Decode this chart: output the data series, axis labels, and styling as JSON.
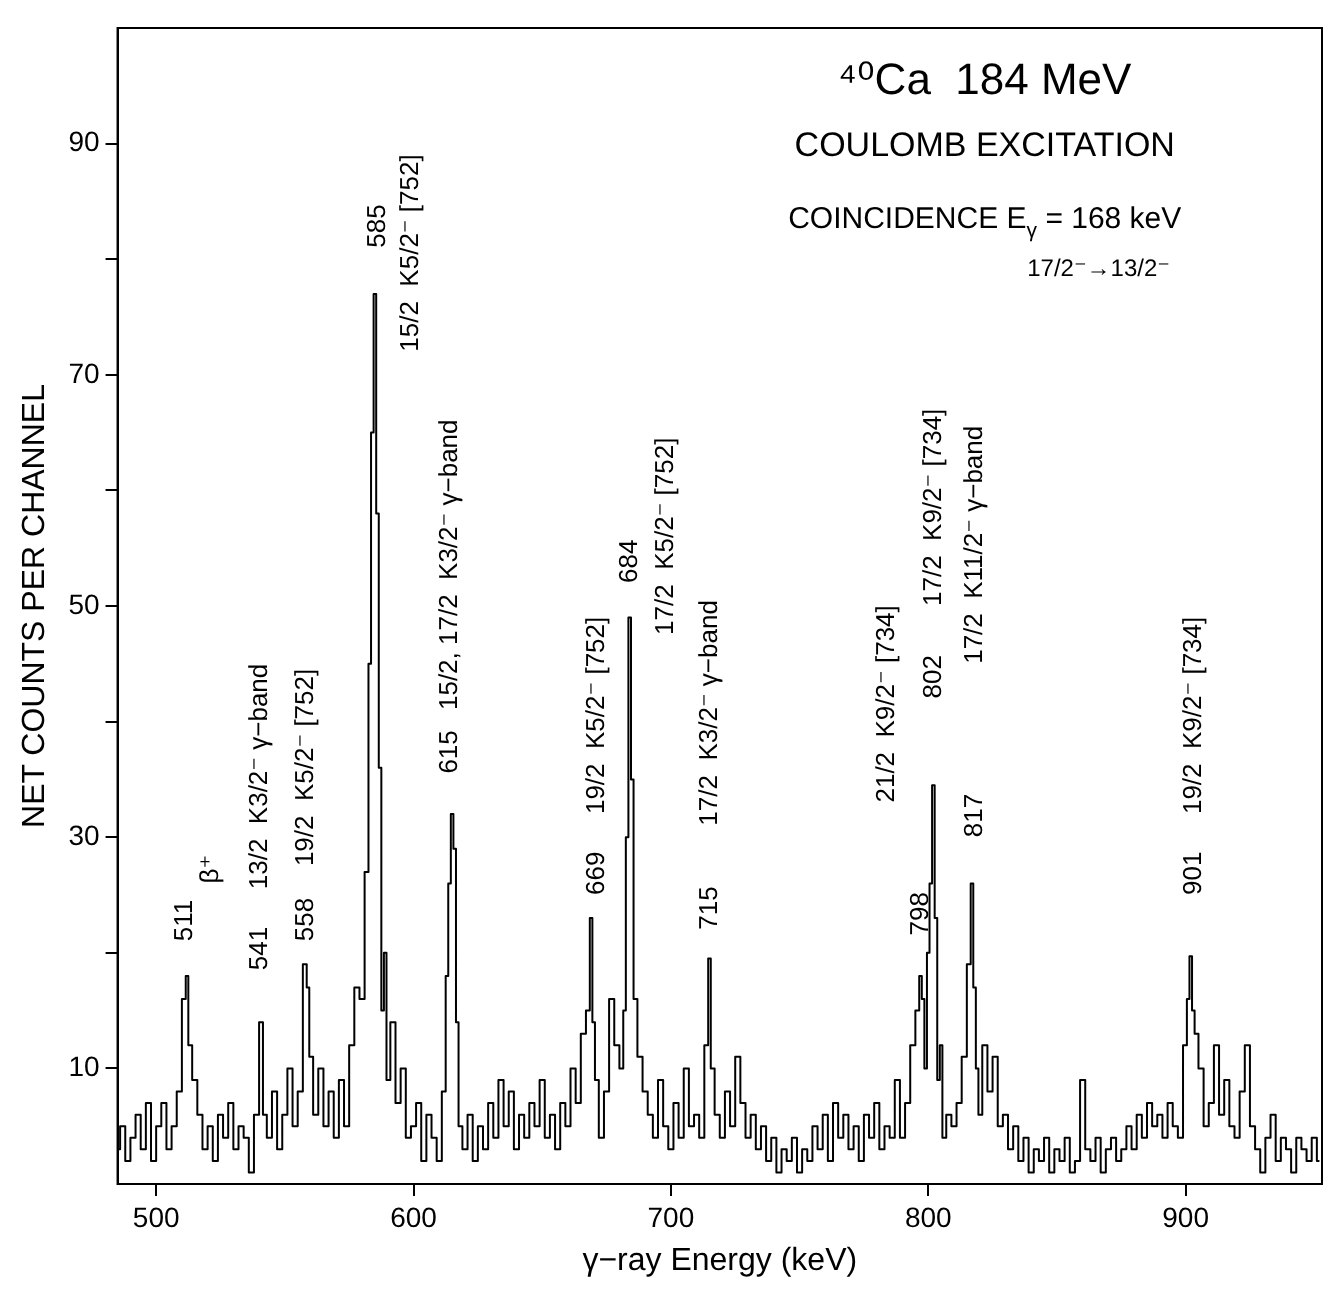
{
  "chart_data": {
    "type": "step",
    "title": "⁴⁰Ca  184 MeV",
    "subtitle": "COULOMB EXCITATION",
    "xlabel": "γ−ray Energy (keV)",
    "ylabel": "NET COUNTS PER CHANNEL",
    "xlim": [
      485,
      953
    ],
    "xticks": [
      500,
      600,
      700,
      800,
      900
    ],
    "ylim": [
      0,
      100
    ],
    "yticks": [
      10,
      {
        "value": 20,
        "label": null
      },
      30,
      {
        "value": 40,
        "label": null
      },
      50,
      {
        "value": 60,
        "label": null
      },
      70,
      {
        "value": 80,
        "label": null
      },
      90
    ],
    "grid": false,
    "legend": false,
    "marker": "none",
    "line_style": "solid",
    "annotations": [
      "COINCIDENCE E$_{γ}$ = 168 keV",
      "17/2⁻→13/2⁻",
      "511",
      "β⁺",
      "541",
      "13/2  K3/2⁻ γ−band",
      "558",
      "19/2  K5/2⁻ [752]",
      "585",
      "15/2  K5/2⁻ [752]",
      "615",
      "15/2, 17/2  K3/2⁻ γ−band",
      "669",
      "19/2  K5/2⁻ [752]",
      "684",
      "17/2  K5/2⁻ [752]",
      "715",
      "17/2  K3/2⁻ γ−band",
      "798",
      "21/2  K9/2⁻ [734]",
      "802",
      "17/2  K9/2⁻ [734]",
      "817",
      "17/2  K11/2⁻ γ−band",
      "901",
      "19/2  K9/2⁻ [734]"
    ],
    "series": [
      {
        "color": "#000000",
        "x": [
          485,
          487,
          489,
          491,
          493,
          495,
          497,
          499,
          501,
          503,
          505,
          507,
          509,
          511,
          512,
          513,
          515,
          517,
          519,
          521,
          523,
          525,
          527,
          529,
          531,
          533,
          535,
          537,
          539,
          541,
          542,
          544,
          546,
          548,
          550,
          552,
          554,
          556,
          558,
          559,
          560,
          562,
          564,
          566,
          568,
          570,
          572,
          574,
          576,
          578,
          580,
          582,
          583,
          584,
          585,
          586,
          587,
          588,
          589,
          590,
          592,
          594,
          596,
          598,
          600,
          602,
          604,
          606,
          608,
          610,
          612,
          613,
          614,
          615,
          616,
          617,
          618,
          620,
          622,
          624,
          626,
          628,
          630,
          632,
          634,
          636,
          638,
          640,
          642,
          644,
          646,
          648,
          650,
          652,
          654,
          656,
          658,
          660,
          662,
          664,
          666,
          668,
          669,
          670,
          671,
          673,
          675,
          677,
          679,
          681,
          682,
          683,
          684,
          685,
          686,
          688,
          690,
          692,
          694,
          696,
          698,
          700,
          702,
          704,
          706,
          708,
          710,
          712,
          714,
          715,
          716,
          718,
          720,
          722,
          724,
          726,
          728,
          730,
          732,
          734,
          736,
          738,
          740,
          742,
          744,
          746,
          748,
          750,
          752,
          754,
          756,
          758,
          760,
          762,
          764,
          766,
          768,
          770,
          772,
          774,
          776,
          778,
          780,
          782,
          784,
          786,
          788,
          790,
          792,
          794,
          796,
          797,
          798,
          799,
          800,
          801,
          802,
          803,
          804,
          805,
          806,
          808,
          810,
          812,
          814,
          816,
          817,
          818,
          819,
          820,
          822,
          824,
          826,
          828,
          830,
          832,
          834,
          836,
          838,
          840,
          842,
          844,
          846,
          848,
          850,
          852,
          854,
          856,
          858,
          860,
          862,
          864,
          866,
          868,
          870,
          872,
          874,
          876,
          878,
          880,
          882,
          884,
          886,
          888,
          890,
          892,
          894,
          896,
          898,
          900,
          901,
          902,
          903,
          904,
          906,
          908,
          910,
          912,
          914,
          916,
          918,
          920,
          922,
          924,
          926,
          928,
          930,
          932,
          934,
          936,
          938,
          940,
          942,
          944,
          946,
          948,
          950,
          952
        ],
        "values": [
          3,
          5,
          2,
          4,
          6,
          3,
          7,
          2,
          5,
          7,
          3,
          5,
          8,
          16,
          18,
          12,
          9,
          6,
          3,
          5,
          2,
          6,
          4,
          7,
          3,
          5,
          4,
          1,
          6,
          14,
          6,
          4,
          8,
          3,
          6,
          10,
          5,
          8,
          19,
          17,
          11,
          6,
          10,
          5,
          8,
          4,
          9,
          5,
          12,
          17,
          16,
          27,
          45,
          65,
          77,
          58,
          36,
          15,
          20,
          9,
          14,
          7,
          10,
          4,
          5,
          7,
          2,
          6,
          4,
          2,
          8,
          18,
          26,
          32,
          29,
          14,
          5,
          3,
          6,
          2,
          5,
          3,
          7,
          4,
          9,
          5,
          8,
          3,
          6,
          4,
          7,
          5,
          9,
          4,
          6,
          3,
          7,
          5,
          10,
          7,
          13,
          15,
          23,
          14,
          9,
          4,
          8,
          16,
          12,
          10,
          15,
          30,
          49,
          35,
          16,
          11,
          8,
          6,
          4,
          9,
          5,
          3,
          7,
          4,
          10,
          5,
          6,
          4,
          12,
          19.5,
          10,
          6,
          4,
          8,
          5,
          11,
          7,
          4,
          6,
          3,
          5,
          2,
          4,
          1,
          3,
          2,
          4,
          1,
          3,
          2,
          5,
          3,
          6,
          2,
          7,
          4,
          6,
          3,
          5,
          2,
          6,
          4,
          7,
          3,
          5,
          4,
          9,
          4,
          7,
          12,
          15,
          18,
          16,
          10,
          20,
          26,
          34.5,
          23,
          9,
          12,
          4,
          6,
          5,
          7,
          11,
          19,
          26,
          17,
          10,
          6,
          12,
          8,
          11,
          5,
          6,
          3,
          5,
          2,
          4,
          1,
          3,
          2,
          4,
          1,
          3,
          2,
          4,
          1,
          2,
          9,
          3,
          2,
          4,
          1,
          3,
          4,
          2,
          3,
          5,
          3,
          6,
          4,
          7,
          5,
          6,
          4,
          7,
          5,
          4,
          12,
          16,
          19.7,
          15,
          13,
          10,
          5,
          7,
          12,
          6,
          9,
          5,
          4,
          8,
          12,
          5,
          3,
          1,
          4,
          6,
          2,
          4,
          3,
          1,
          4,
          3,
          2,
          4,
          2
        ]
      }
    ]
  }
}
